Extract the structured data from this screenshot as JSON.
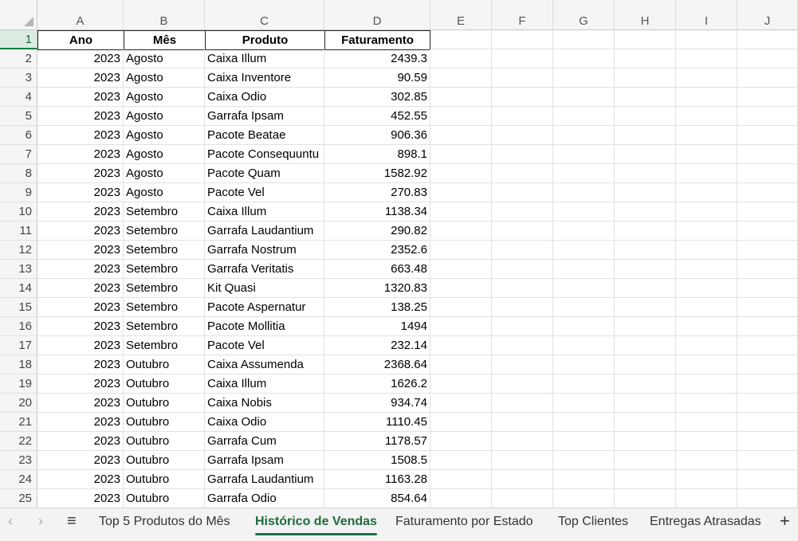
{
  "columns": [
    "A",
    "B",
    "C",
    "D",
    "E",
    "F",
    "G",
    "H",
    "I",
    "J"
  ],
  "header": [
    "Ano",
    "Mês",
    "Produto",
    "Faturamento"
  ],
  "rows": [
    [
      "2023",
      "Agosto",
      "Caixa Illum",
      "2439.3"
    ],
    [
      "2023",
      "Agosto",
      "Caixa Inventore",
      "90.59"
    ],
    [
      "2023",
      "Agosto",
      "Caixa Odio",
      "302.85"
    ],
    [
      "2023",
      "Agosto",
      "Garrafa Ipsam",
      "452.55"
    ],
    [
      "2023",
      "Agosto",
      "Pacote Beatae",
      "906.36"
    ],
    [
      "2023",
      "Agosto",
      "Pacote Consequuntu",
      "898.1"
    ],
    [
      "2023",
      "Agosto",
      "Pacote Quam",
      "1582.92"
    ],
    [
      "2023",
      "Agosto",
      "Pacote Vel",
      "270.83"
    ],
    [
      "2023",
      "Setembro",
      "Caixa Illum",
      "1138.34"
    ],
    [
      "2023",
      "Setembro",
      "Garrafa Laudantium",
      "290.82"
    ],
    [
      "2023",
      "Setembro",
      "Garrafa Nostrum",
      "2352.6"
    ],
    [
      "2023",
      "Setembro",
      "Garrafa Veritatis",
      "663.48"
    ],
    [
      "2023",
      "Setembro",
      "Kit Quasi",
      "1320.83"
    ],
    [
      "2023",
      "Setembro",
      "Pacote Aspernatur",
      "138.25"
    ],
    [
      "2023",
      "Setembro",
      "Pacote Mollitia",
      "1494"
    ],
    [
      "2023",
      "Setembro",
      "Pacote Vel",
      "232.14"
    ],
    [
      "2023",
      "Outubro",
      "Caixa Assumenda",
      "2368.64"
    ],
    [
      "2023",
      "Outubro",
      "Caixa Illum",
      "1626.2"
    ],
    [
      "2023",
      "Outubro",
      "Caixa Nobis",
      "934.74"
    ],
    [
      "2023",
      "Outubro",
      "Caixa Odio",
      "1110.45"
    ],
    [
      "2023",
      "Outubro",
      "Garrafa Cum",
      "1178.57"
    ],
    [
      "2023",
      "Outubro",
      "Garrafa Ipsam",
      "1508.5"
    ],
    [
      "2023",
      "Outubro",
      "Garrafa Laudantium",
      "1163.28"
    ],
    [
      "2023",
      "Outubro",
      "Garrafa Odio",
      "854.64"
    ]
  ],
  "row_numbers": [
    "1",
    "2",
    "3",
    "4",
    "5",
    "6",
    "7",
    "8",
    "9",
    "10",
    "11",
    "12",
    "13",
    "14",
    "15",
    "16",
    "17",
    "18",
    "19",
    "20",
    "21",
    "22",
    "23",
    "24",
    "25"
  ],
  "tabs": [
    {
      "label": "Top 5 Produtos do Mês",
      "active": false
    },
    {
      "label": "Histórico de Vendas",
      "active": true
    },
    {
      "label": "Faturamento por Estado",
      "active": false
    },
    {
      "label": "Top Clientes",
      "active": false
    },
    {
      "label": "Entregas Atrasadas",
      "active": false
    }
  ],
  "tab_nav": {
    "prev": "‹",
    "next": "›",
    "menu": "≡",
    "add": "+"
  },
  "colors": {
    "accent": "#1e7145",
    "selected_row_bg": "#dcebe1"
  }
}
